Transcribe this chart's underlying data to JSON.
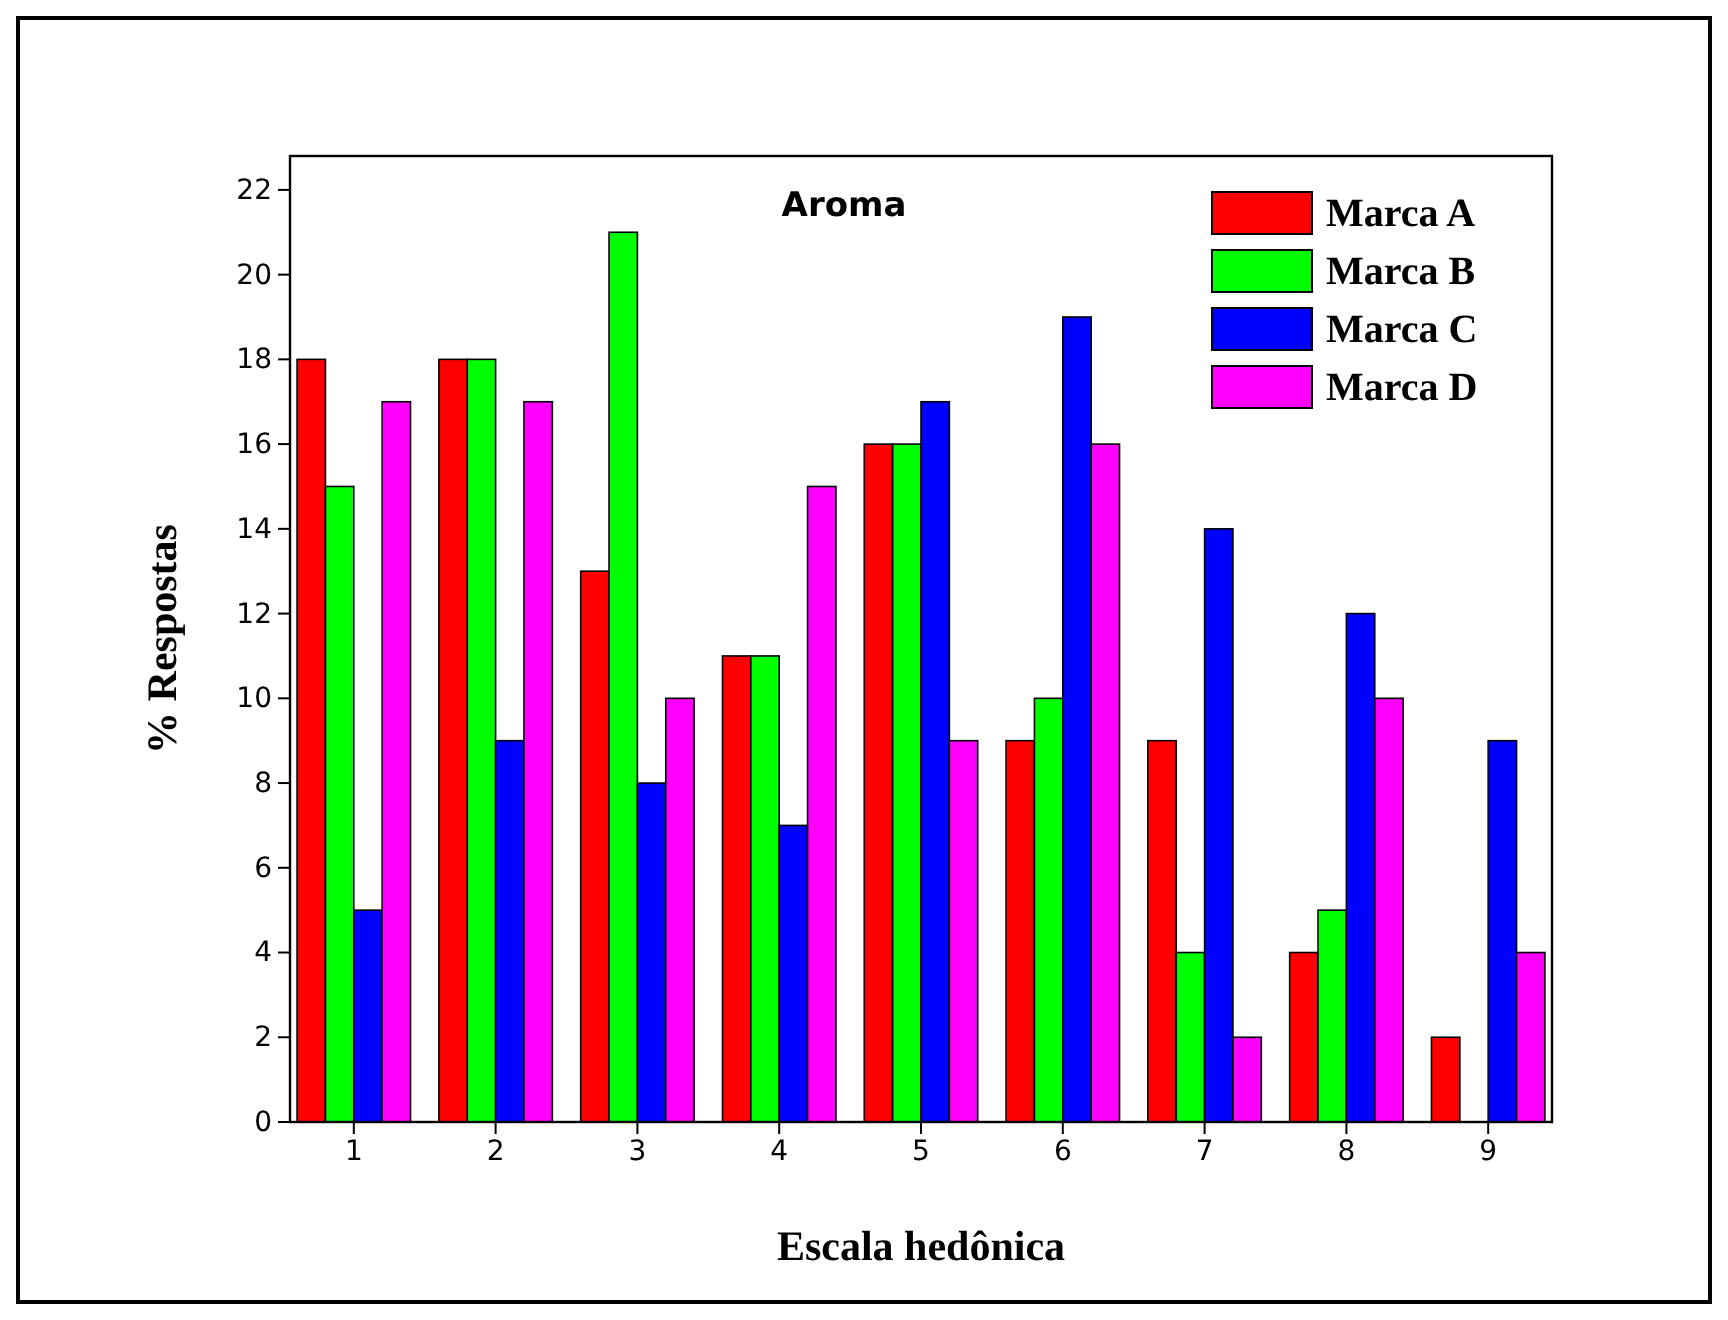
{
  "chart_data": {
    "type": "bar",
    "title": "Aroma",
    "xlabel": "Escala hedônica",
    "ylabel": "% Respostas",
    "categories": [
      "1",
      "2",
      "3",
      "4",
      "5",
      "6",
      "7",
      "8",
      "9"
    ],
    "series": [
      {
        "name": "Marca A",
        "color": "#ff0000",
        "values": [
          18,
          18,
          13,
          11,
          16,
          9,
          9,
          4,
          2
        ]
      },
      {
        "name": "Marca B",
        "color": "#00ff00",
        "values": [
          15,
          18,
          21,
          11,
          16,
          10,
          4,
          5,
          0
        ]
      },
      {
        "name": "Marca C",
        "color": "#0000ff",
        "values": [
          5,
          9,
          8,
          7,
          17,
          19,
          14,
          12,
          9
        ]
      },
      {
        "name": "Marca D",
        "color": "#ff00ff",
        "values": [
          17,
          17,
          10,
          15,
          9,
          16,
          2,
          10,
          4
        ]
      }
    ],
    "ylim": [
      0,
      22.8
    ],
    "yticks": [
      0,
      2,
      4,
      6,
      8,
      10,
      12,
      14,
      16,
      18,
      20,
      22
    ],
    "legend": "top right",
    "grid": false
  }
}
